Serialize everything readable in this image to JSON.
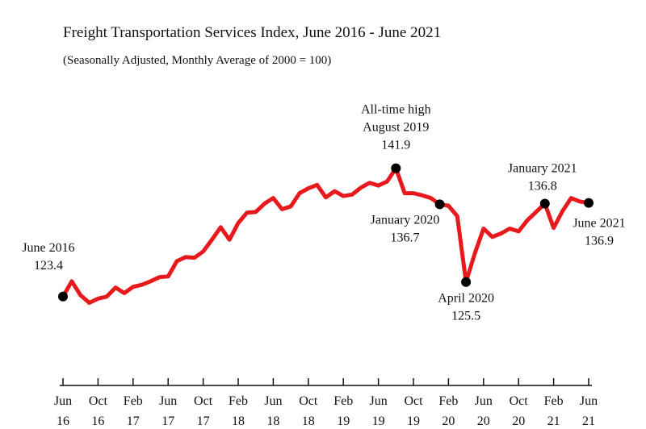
{
  "chart_data": {
    "type": "line",
    "title": "Freight Transportation Services Index, June 2016 - June 2021",
    "subtitle": "(Seasonally Adjusted, Monthly Average of 2000 = 100)",
    "categories": [
      "Jun 16",
      null,
      null,
      null,
      "Oct 16",
      null,
      null,
      null,
      "Feb 17",
      null,
      null,
      null,
      "Jun 17",
      null,
      null,
      null,
      "Oct 17",
      null,
      null,
      null,
      "Feb 18",
      null,
      null,
      null,
      "Jun 18",
      null,
      null,
      null,
      "Oct 18",
      null,
      null,
      null,
      "Feb 19",
      null,
      null,
      null,
      "Jun 19",
      null,
      null,
      null,
      "Oct 19",
      null,
      null,
      null,
      "Feb 20",
      null,
      null,
      null,
      "Jun 20",
      null,
      null,
      null,
      "Oct 20",
      null,
      null,
      null,
      "Feb 21",
      null,
      null,
      null,
      "Jun 21"
    ],
    "series": [
      {
        "name": "Freight Transportation Services Index",
        "color": "#e8191c",
        "values": [
          123.4,
          125.6,
          123.6,
          122.5,
          123.1,
          123.4,
          124.7,
          123.9,
          124.8,
          125.1,
          125.6,
          126.2,
          126.3,
          128.5,
          129.1,
          129.0,
          129.9,
          131.6,
          133.4,
          131.6,
          134.0,
          135.5,
          135.6,
          136.8,
          137.6,
          136.0,
          136.4,
          138.3,
          139.0,
          139.5,
          137.7,
          138.6,
          137.9,
          138.1,
          139.1,
          139.8,
          139.4,
          140.0,
          141.9,
          138.3,
          138.3,
          138.0,
          137.6,
          136.7,
          136.5,
          135.0,
          125.5,
          129.6,
          133.2,
          132.0,
          132.5,
          133.2,
          132.8,
          134.4,
          135.6,
          136.8,
          133.3,
          135.7,
          137.6,
          137.1,
          136.9
        ]
      }
    ],
    "ylim": [
      115,
      145
    ],
    "annotations": [
      {
        "index": 0,
        "lines": [
          "June 2016",
          "123.4"
        ]
      },
      {
        "index": 38,
        "lines": [
          "All-time high",
          "August 2019",
          "141.9"
        ]
      },
      {
        "index": 43,
        "lines": [
          "January 2020",
          "136.7"
        ]
      },
      {
        "index": 46,
        "lines": [
          "April 2020",
          "125.5"
        ]
      },
      {
        "index": 55,
        "lines": [
          "January 2021",
          "136.8"
        ]
      },
      {
        "index": 60,
        "lines": [
          "June 2021",
          "136.9"
        ]
      }
    ]
  }
}
